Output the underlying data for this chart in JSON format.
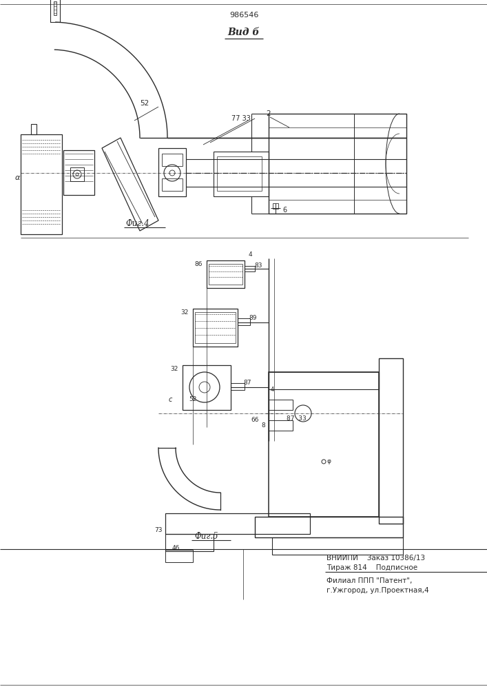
{
  "patent_number": "986546",
  "view_label": "Вид б",
  "fig4_label": "Фиг.4",
  "fig5_label": "Фиг.5",
  "footer_line1": "ВНИИПИ    Заказ 10386/13",
  "footer_line2": "Тираж 814    Подписное",
  "footer_line3": "Филиал ППП \"Патент\",",
  "footer_line4": "г.Ужгород, ул.Проектная,4",
  "bg_color": "#ffffff",
  "line_color": "#2a2a2a",
  "text_color": "#2a2a2a"
}
